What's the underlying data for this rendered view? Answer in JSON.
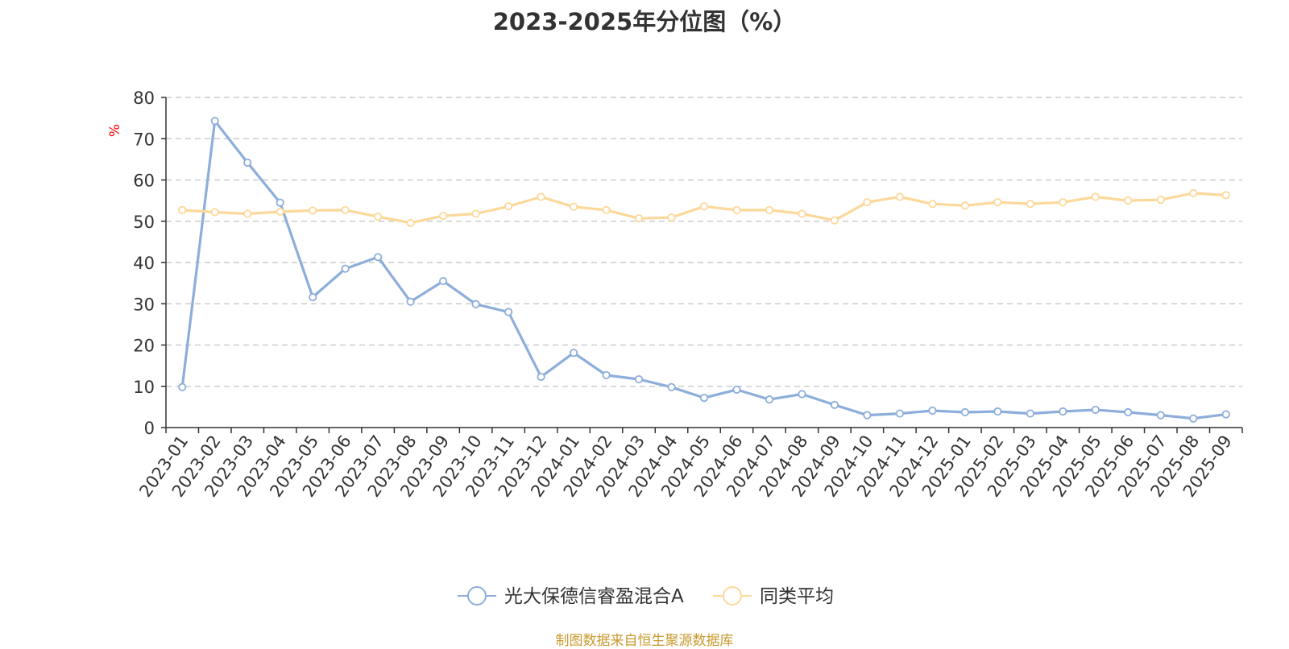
{
  "colors": {
    "series_1": "#8daddb",
    "series_2": "#fcd89a",
    "axis": "#333333",
    "grid": "#cccccc",
    "unit": "#ff0000",
    "source": "#c99a2e"
  },
  "chart_data": {
    "type": "line",
    "title": "2023-2025年分位图（%）",
    "ylabel": "%",
    "ylim": [
      0,
      80
    ],
    "yticks": [
      0,
      10,
      20,
      30,
      40,
      50,
      60,
      70,
      80
    ],
    "grid": true,
    "legend_position": "bottom-center",
    "categories": [
      "2023-01",
      "2023-02",
      "2023-03",
      "2023-04",
      "2023-05",
      "2023-06",
      "2023-07",
      "2023-08",
      "2023-09",
      "2023-10",
      "2023-11",
      "2023-12",
      "2024-01",
      "2024-02",
      "2024-03",
      "2024-04",
      "2024-05",
      "2024-06",
      "2024-07",
      "2024-08",
      "2024-09",
      "2024-10",
      "2024-11",
      "2024-12",
      "2025-01",
      "2025-02",
      "2025-03",
      "2025-04",
      "2025-05",
      "2025-06",
      "2025-07",
      "2025-08",
      "2025-09"
    ],
    "series": [
      {
        "name": "光大保德信睿盈混合A",
        "values": [
          9.8,
          74.3,
          64.2,
          54.5,
          31.6,
          38.5,
          41.3,
          30.5,
          35.5,
          29.9,
          28.0,
          12.3,
          18.1,
          12.7,
          11.7,
          9.8,
          7.2,
          9.2,
          6.8,
          8.1,
          5.5,
          3.0,
          3.4,
          4.1,
          3.7,
          3.9,
          3.4,
          3.9,
          4.3,
          3.7,
          3.0,
          2.2,
          3.2
        ]
      },
      {
        "name": "同类平均",
        "values": [
          52.7,
          52.2,
          51.8,
          52.3,
          52.6,
          52.7,
          51.1,
          49.6,
          51.3,
          51.8,
          53.6,
          55.9,
          53.5,
          52.7,
          50.7,
          50.9,
          53.6,
          52.7,
          52.7,
          51.8,
          50.2,
          54.6,
          55.9,
          54.2,
          53.8,
          54.6,
          54.2,
          54.6,
          55.9,
          55.0,
          55.2,
          56.8,
          56.3
        ]
      }
    ]
  },
  "source_text": "制图数据来自恒生聚源数据库"
}
